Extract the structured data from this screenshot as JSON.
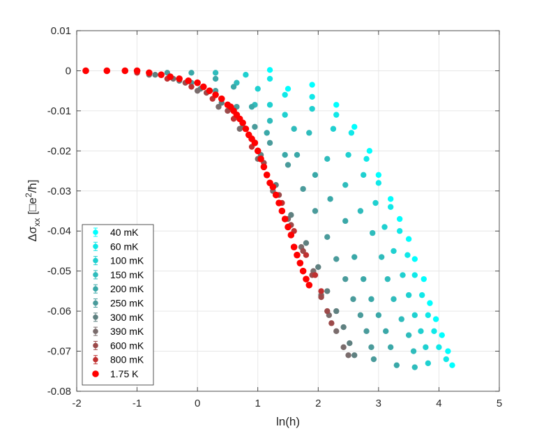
{
  "chart_data": {
    "type": "scatter",
    "title": "",
    "xlabel": "ln(h)",
    "ylabel_parts": [
      "Δσ",
      "xx",
      "[□e",
      "2",
      "/ħ]"
    ],
    "xlim": [
      -2,
      5
    ],
    "ylim": [
      -0.08,
      0.01
    ],
    "x_ticks": [
      -2,
      -1,
      0,
      1,
      2,
      3,
      4,
      5
    ],
    "x_tick_labels": [
      "-2",
      "-1",
      "0",
      "1",
      "2",
      "3",
      "4",
      "5"
    ],
    "y_ticks": [
      0.01,
      0,
      -0.01,
      -0.02,
      -0.03,
      -0.04,
      -0.05,
      -0.06,
      -0.07,
      -0.08
    ],
    "y_tick_labels": [
      "0.01",
      "0",
      "-0.01",
      "-0.02",
      "-0.03",
      "-0.04",
      "-0.05",
      "-0.06",
      "-0.07",
      "-0.08"
    ],
    "grid": true,
    "legend_position": "bottom-left",
    "series": [
      {
        "name": "40 mK",
        "color": "#00ffff",
        "points": [
          [
            1.2,
            0.0002
          ],
          [
            1.5,
            -0.0045
          ],
          [
            1.9,
            -0.0035
          ],
          [
            2.3,
            -0.0085
          ],
          [
            2.6,
            -0.014
          ],
          [
            2.85,
            -0.02
          ],
          [
            3.0,
            -0.026
          ],
          [
            3.2,
            -0.032
          ],
          [
            3.35,
            -0.037
          ],
          [
            3.5,
            -0.042
          ],
          [
            3.6,
            -0.047
          ],
          [
            3.75,
            -0.052
          ],
          [
            3.85,
            -0.058
          ],
          [
            3.95,
            -0.062
          ],
          [
            4.05,
            -0.066
          ],
          [
            4.15,
            -0.07
          ],
          [
            4.22,
            -0.0735
          ]
        ]
      },
      {
        "name": "60 mK",
        "color": "#10e8e8",
        "points": [
          [
            1.2,
            -0.002
          ],
          [
            1.45,
            -0.006
          ],
          [
            1.9,
            -0.0065
          ],
          [
            2.3,
            -0.011
          ],
          [
            2.55,
            -0.0155
          ],
          [
            2.8,
            -0.022
          ],
          [
            3.0,
            -0.028
          ],
          [
            3.2,
            -0.034
          ],
          [
            3.35,
            -0.04
          ],
          [
            3.48,
            -0.046
          ],
          [
            3.6,
            -0.051
          ],
          [
            3.72,
            -0.056
          ],
          [
            3.82,
            -0.061
          ],
          [
            3.92,
            -0.065
          ],
          [
            4.0,
            -0.069
          ],
          [
            4.12,
            -0.072
          ]
        ]
      },
      {
        "name": "100 mK",
        "color": "#1fd0d0",
        "points": [
          [
            0.8,
            -0.001
          ],
          [
            1.0,
            -0.0045
          ],
          [
            1.2,
            -0.0085
          ],
          [
            1.45,
            -0.011
          ],
          [
            1.9,
            -0.0095
          ],
          [
            2.25,
            -0.0145
          ],
          [
            2.5,
            -0.021
          ],
          [
            2.75,
            -0.026
          ],
          [
            2.95,
            -0.033
          ],
          [
            3.1,
            -0.039
          ],
          [
            3.25,
            -0.045
          ],
          [
            3.4,
            -0.051
          ],
          [
            3.5,
            -0.056
          ],
          [
            3.6,
            -0.061
          ],
          [
            3.7,
            -0.065
          ],
          [
            3.78,
            -0.069
          ],
          [
            3.82,
            -0.073
          ]
        ]
      },
      {
        "name": "150 mK",
        "color": "#2fbcbc",
        "points": [
          [
            0.3,
            -0.0005
          ],
          [
            0.65,
            -0.003
          ],
          [
            0.95,
            -0.0085
          ],
          [
            1.2,
            -0.0125
          ],
          [
            1.6,
            -0.0145
          ],
          [
            1.85,
            -0.0155
          ],
          [
            2.15,
            -0.022
          ],
          [
            2.45,
            -0.0285
          ],
          [
            2.7,
            -0.035
          ],
          [
            2.9,
            -0.0405
          ],
          [
            3.05,
            -0.0465
          ],
          [
            3.15,
            -0.052
          ],
          [
            3.25,
            -0.057
          ],
          [
            3.38,
            -0.062
          ],
          [
            3.5,
            -0.066
          ],
          [
            3.58,
            -0.07
          ],
          [
            3.6,
            -0.074
          ]
        ]
      },
      {
        "name": "200 mK",
        "color": "#3aa8a8",
        "points": [
          [
            -0.1,
            -0.0005
          ],
          [
            0.3,
            -0.002
          ],
          [
            0.6,
            -0.004
          ],
          [
            0.9,
            -0.009
          ],
          [
            1.15,
            -0.0155
          ],
          [
            1.45,
            -0.021
          ],
          [
            1.65,
            -0.021
          ],
          [
            1.95,
            -0.026
          ],
          [
            2.2,
            -0.032
          ],
          [
            2.45,
            -0.0375
          ],
          [
            2.6,
            -0.0465
          ],
          [
            2.75,
            -0.052
          ],
          [
            2.88,
            -0.057
          ],
          [
            3.0,
            -0.061
          ],
          [
            3.12,
            -0.065
          ],
          [
            3.2,
            -0.069
          ],
          [
            3.3,
            -0.0735
          ]
        ]
      },
      {
        "name": "250 mK",
        "color": "#4a9b9b",
        "points": [
          [
            -0.5,
            -0.0005
          ],
          [
            -0.1,
            -0.003
          ],
          [
            0.3,
            -0.005
          ],
          [
            0.65,
            -0.009
          ],
          [
            0.95,
            -0.014
          ],
          [
            1.2,
            -0.018
          ],
          [
            1.5,
            -0.0235
          ],
          [
            1.75,
            -0.0295
          ],
          [
            1.95,
            -0.035
          ],
          [
            2.15,
            -0.0415
          ],
          [
            2.3,
            -0.047
          ],
          [
            2.45,
            -0.052
          ],
          [
            2.58,
            -0.057
          ],
          [
            2.7,
            -0.061
          ],
          [
            2.8,
            -0.065
          ],
          [
            2.88,
            -0.069
          ],
          [
            2.92,
            -0.072
          ]
        ]
      },
      {
        "name": "300 mK",
        "color": "#5f8080",
        "points": [
          [
            -0.7,
            -0.001
          ],
          [
            -0.3,
            -0.0025
          ],
          [
            0.05,
            -0.0045
          ],
          [
            0.4,
            -0.008
          ],
          [
            0.75,
            -0.014
          ],
          [
            1.05,
            -0.021
          ],
          [
            1.3,
            -0.0285
          ],
          [
            1.55,
            -0.036
          ],
          [
            1.8,
            -0.043
          ],
          [
            2.0,
            -0.049
          ],
          [
            2.15,
            -0.055
          ],
          [
            2.3,
            -0.06
          ],
          [
            2.42,
            -0.064
          ],
          [
            2.52,
            -0.068
          ],
          [
            2.6,
            -0.071
          ]
        ]
      },
      {
        "name": "390 mK",
        "color": "#7a6c6c",
        "points": [
          [
            -0.8,
            -0.001
          ],
          [
            -0.4,
            -0.002
          ],
          [
            0.0,
            -0.005
          ],
          [
            0.35,
            -0.009
          ],
          [
            0.7,
            -0.0145
          ],
          [
            1.0,
            -0.022
          ],
          [
            1.25,
            -0.03
          ],
          [
            1.5,
            -0.037
          ],
          [
            1.72,
            -0.044
          ],
          [
            1.92,
            -0.05
          ],
          [
            2.05,
            -0.056
          ],
          [
            2.18,
            -0.061
          ],
          [
            2.3,
            -0.065
          ],
          [
            2.42,
            -0.069
          ],
          [
            2.5,
            -0.071
          ]
        ]
      },
      {
        "name": "600 mK",
        "color": "#9c4a4a",
        "points": [
          [
            -1.2,
            0.0
          ],
          [
            -0.6,
            -0.001
          ],
          [
            -0.2,
            -0.003
          ],
          [
            0.15,
            -0.0055
          ],
          [
            0.5,
            -0.01
          ],
          [
            0.85,
            -0.016
          ],
          [
            1.1,
            -0.023
          ],
          [
            1.35,
            -0.031
          ],
          [
            1.55,
            -0.0385
          ],
          [
            1.75,
            -0.045
          ],
          [
            1.9,
            -0.051
          ],
          [
            2.05,
            -0.0565
          ],
          [
            2.15,
            -0.06
          ],
          [
            2.22,
            -0.063
          ]
        ]
      },
      {
        "name": "800 mK",
        "color": "#c03030",
        "points": [
          [
            -1.5,
            0.0
          ],
          [
            -1.0,
            -0.0005
          ],
          [
            -0.5,
            -0.002
          ],
          [
            -0.1,
            -0.004
          ],
          [
            0.25,
            -0.007
          ],
          [
            0.6,
            -0.012
          ],
          [
            0.9,
            -0.019
          ],
          [
            1.15,
            -0.026
          ],
          [
            1.4,
            -0.033
          ],
          [
            1.6,
            -0.04
          ],
          [
            1.8,
            -0.046
          ],
          [
            1.95,
            -0.051
          ],
          [
            2.05,
            -0.055
          ]
        ]
      },
      {
        "name": "1.75 K",
        "color": "#ff0000",
        "points": [
          [
            -1.85,
            0.0
          ],
          [
            -1.5,
            0.0
          ],
          [
            -1.2,
            0.0
          ],
          [
            -1.0,
            0.0
          ],
          [
            -0.8,
            -0.0005
          ],
          [
            -0.6,
            -0.001
          ],
          [
            -0.45,
            -0.0015
          ],
          [
            -0.3,
            -0.002
          ],
          [
            -0.15,
            -0.0025
          ],
          [
            0.0,
            -0.003
          ],
          [
            0.1,
            -0.004
          ],
          [
            0.2,
            -0.005
          ],
          [
            0.3,
            -0.006
          ],
          [
            0.4,
            -0.007
          ],
          [
            0.5,
            -0.0085
          ],
          [
            0.55,
            -0.009
          ],
          [
            0.6,
            -0.01
          ],
          [
            0.65,
            -0.011
          ],
          [
            0.7,
            -0.012
          ],
          [
            0.75,
            -0.013
          ],
          [
            0.8,
            -0.0145
          ],
          [
            0.85,
            -0.016
          ],
          [
            0.9,
            -0.017
          ],
          [
            0.95,
            -0.018
          ],
          [
            1.0,
            -0.02
          ],
          [
            1.05,
            -0.022
          ],
          [
            1.1,
            -0.024
          ],
          [
            1.15,
            -0.026
          ],
          [
            1.2,
            -0.028
          ],
          [
            1.25,
            -0.029
          ],
          [
            1.3,
            -0.031
          ],
          [
            1.35,
            -0.033
          ],
          [
            1.4,
            -0.035
          ],
          [
            1.45,
            -0.037
          ],
          [
            1.5,
            -0.039
          ],
          [
            1.55,
            -0.041
          ],
          [
            1.6,
            -0.044
          ],
          [
            1.65,
            -0.046
          ],
          [
            1.7,
            -0.048
          ],
          [
            1.75,
            -0.05
          ],
          [
            1.8,
            -0.052
          ],
          [
            1.85,
            -0.0535
          ]
        ]
      }
    ]
  }
}
